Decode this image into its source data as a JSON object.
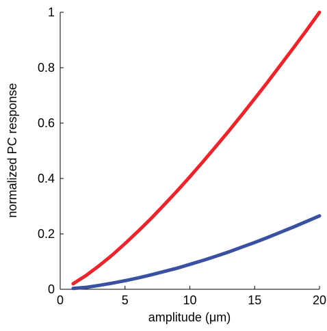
{
  "chart_data": {
    "type": "line",
    "xlabel": "amplitude (μm)",
    "ylabel": "normalized PC response",
    "x": [
      1,
      2,
      3,
      4,
      5,
      6,
      7,
      8,
      9,
      10,
      11,
      12,
      13,
      14,
      15,
      16,
      17,
      18,
      19,
      20
    ],
    "series": [
      {
        "color": "#e8262d",
        "values": [
          0.02,
          0.05,
          0.085,
          0.123,
          0.165,
          0.209,
          0.255,
          0.304,
          0.354,
          0.406,
          0.46,
          0.515,
          0.571,
          0.629,
          0.688,
          0.748,
          0.81,
          0.872,
          0.935,
          1
        ]
      },
      {
        "color": "#3a50a0",
        "values": [
          0.003,
          0.007,
          0.014,
          0.022,
          0.031,
          0.041,
          0.052,
          0.064,
          0.076,
          0.09,
          0.104,
          0.119,
          0.135,
          0.152,
          0.169,
          0.187,
          0.206,
          0.225,
          0.245,
          0.265
        ]
      }
    ],
    "xlim": [
      0,
      20
    ],
    "xticks": [
      0,
      5,
      10,
      15,
      20
    ],
    "ylim": [
      0,
      1
    ],
    "yticks": [
      0,
      0.2,
      0.4,
      0.6,
      0.8,
      1
    ]
  }
}
